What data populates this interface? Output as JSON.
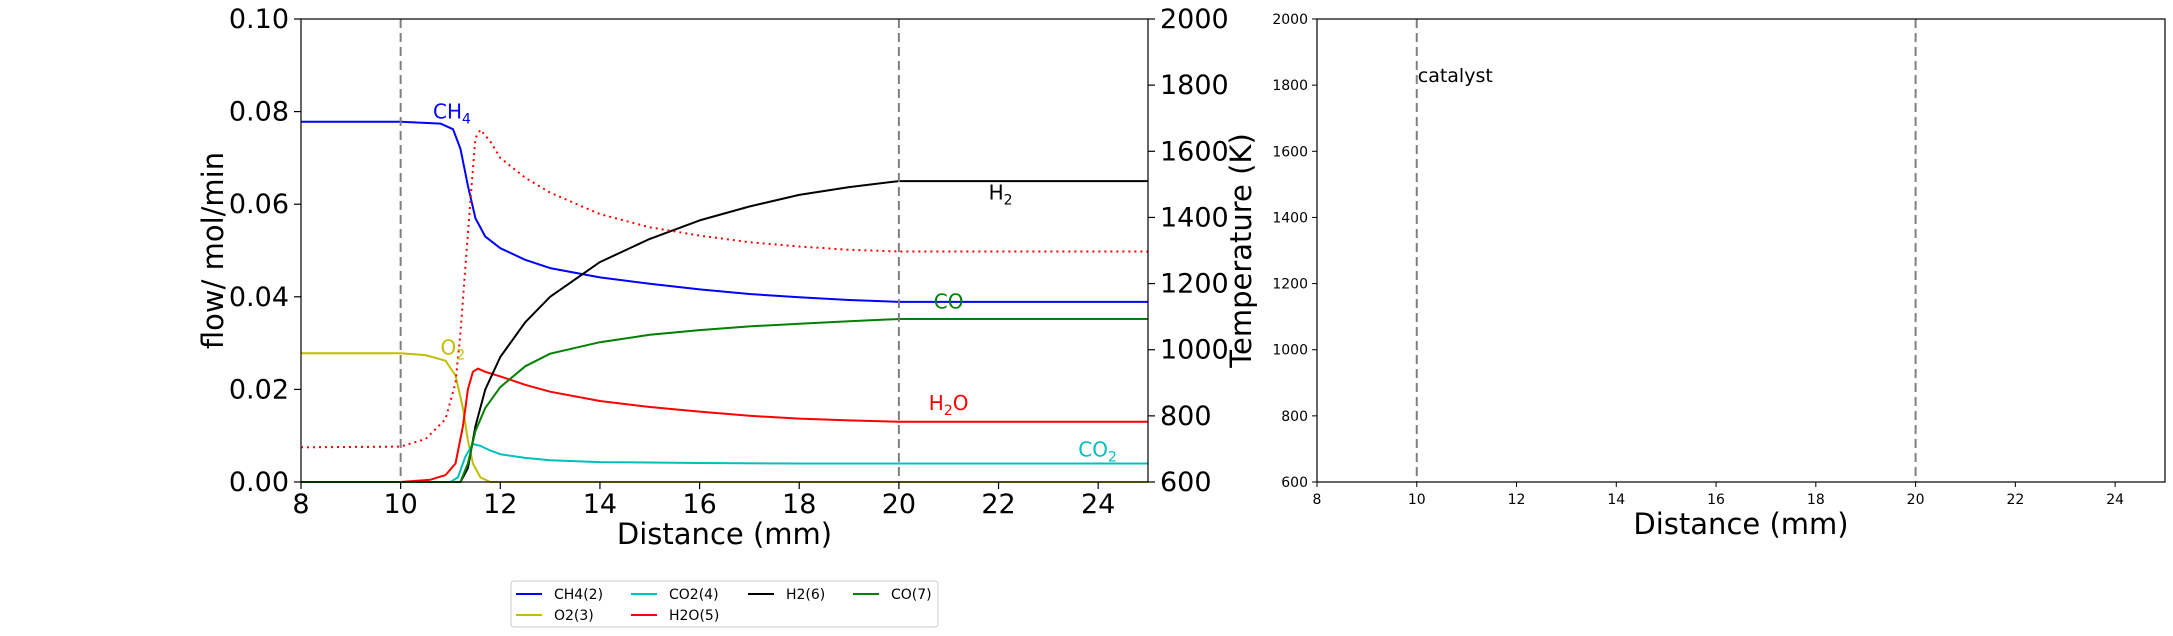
{
  "chart_data": [
    {
      "type": "line",
      "xlabel": "Distance (mm)",
      "ylabel": "flow/ mol/min",
      "y2label": "Temperature (K)",
      "xlim": [
        8,
        25
      ],
      "ylim": [
        0,
        0.1
      ],
      "y2lim": [
        600,
        2000
      ],
      "xticks": [
        "8",
        "10",
        "12",
        "14",
        "16",
        "18",
        "20",
        "22",
        "24"
      ],
      "yticks": [
        "0.00",
        "0.02",
        "0.04",
        "0.06",
        "0.08",
        "0.10"
      ],
      "y2ticks": [
        "600",
        "800",
        "1000",
        "1200",
        "1400",
        "1600",
        "1800",
        "2000"
      ],
      "vlines": [
        10,
        20
      ],
      "grid": false,
      "legend": {
        "placement": "below",
        "entries": [
          {
            "label": "CH4(2)",
            "color": "#0000ff"
          },
          {
            "label": "O2(3)",
            "color": "#bfbf00"
          },
          {
            "label": "CO2(4)",
            "color": "#00bfbf"
          },
          {
            "label": "H2O(5)",
            "color": "#ff0000"
          },
          {
            "label": "H2(6)",
            "color": "#000000"
          },
          {
            "label": "CO(7)",
            "color": "#008000"
          }
        ]
      },
      "annotations": [
        {
          "base": "CH",
          "sub": "4",
          "x": 10.65,
          "y": 0.0785,
          "color": "#0000ff"
        },
        {
          "base": "O",
          "sub": "2",
          "x": 10.8,
          "y": 0.0275,
          "color": "#bfbf00"
        },
        {
          "base": "H",
          "sub": "2",
          "x": 21.8,
          "y": 0.061,
          "color": "#000000"
        },
        {
          "base": "CO",
          "sub": "",
          "x": 20.7,
          "y": 0.0375,
          "color": "#008000"
        },
        {
          "base": "H",
          "sub": "2",
          "tail": "O",
          "x": 20.6,
          "y": 0.0155,
          "color": "#ff0000"
        },
        {
          "base": "CO",
          "sub": "2",
          "x": 23.6,
          "y": 0.0055,
          "color": "#00bfbf"
        }
      ],
      "series": [
        {
          "name": "CH4(2)",
          "color": "#0000ff",
          "axis": "y",
          "points": [
            [
              8,
              0.0778
            ],
            [
              10,
              0.0778
            ],
            [
              10.8,
              0.0774
            ],
            [
              11.05,
              0.0762
            ],
            [
              11.2,
              0.072
            ],
            [
              11.35,
              0.064
            ],
            [
              11.5,
              0.057
            ],
            [
              11.7,
              0.053
            ],
            [
              12,
              0.0505
            ],
            [
              12.5,
              0.048
            ],
            [
              13,
              0.0462
            ],
            [
              14,
              0.0442
            ],
            [
              15,
              0.0428
            ],
            [
              16,
              0.0416
            ],
            [
              17,
              0.0406
            ],
            [
              18,
              0.0399
            ],
            [
              19,
              0.0393
            ],
            [
              20,
              0.0389
            ],
            [
              25,
              0.0389
            ]
          ]
        },
        {
          "name": "O2(3)",
          "color": "#bfbf00",
          "axis": "y",
          "points": [
            [
              8,
              0.0278
            ],
            [
              10,
              0.0278
            ],
            [
              10.5,
              0.0274
            ],
            [
              10.9,
              0.0262
            ],
            [
              11.1,
              0.023
            ],
            [
              11.25,
              0.016
            ],
            [
              11.35,
              0.009
            ],
            [
              11.45,
              0.004
            ],
            [
              11.6,
              0.001
            ],
            [
              11.8,
              0
            ],
            [
              25,
              0
            ]
          ]
        },
        {
          "name": "CO2(4)",
          "color": "#00bfbf",
          "axis": "y",
          "points": [
            [
              8,
              0
            ],
            [
              11,
              0
            ],
            [
              11.15,
              0.001
            ],
            [
              11.3,
              0.0055
            ],
            [
              11.45,
              0.0082
            ],
            [
              11.6,
              0.0078
            ],
            [
              11.8,
              0.0068
            ],
            [
              12,
              0.006
            ],
            [
              12.5,
              0.0052
            ],
            [
              13,
              0.0047
            ],
            [
              14,
              0.0043
            ],
            [
              16,
              0.0041
            ],
            [
              18,
              0.004
            ],
            [
              20,
              0.004
            ],
            [
              25,
              0.004
            ]
          ]
        },
        {
          "name": "H2O(5)",
          "color": "#ff0000",
          "axis": "y",
          "points": [
            [
              8,
              0
            ],
            [
              10,
              0
            ],
            [
              10.6,
              0.0005
            ],
            [
              10.9,
              0.0015
            ],
            [
              11.1,
              0.004
            ],
            [
              11.25,
              0.012
            ],
            [
              11.35,
              0.02
            ],
            [
              11.45,
              0.0238
            ],
            [
              11.55,
              0.0245
            ],
            [
              11.7,
              0.0238
            ],
            [
              12,
              0.0228
            ],
            [
              12.5,
              0.021
            ],
            [
              13,
              0.0195
            ],
            [
              14,
              0.0175
            ],
            [
              15,
              0.0162
            ],
            [
              16,
              0.0152
            ],
            [
              17,
              0.0143
            ],
            [
              18,
              0.0137
            ],
            [
              19,
              0.0133
            ],
            [
              20,
              0.013
            ],
            [
              25,
              0.013
            ]
          ]
        },
        {
          "name": "H2(6)",
          "color": "#000000",
          "axis": "y",
          "points": [
            [
              8,
              0
            ],
            [
              11.2,
              0
            ],
            [
              11.35,
              0.003
            ],
            [
              11.5,
              0.012
            ],
            [
              11.7,
              0.02
            ],
            [
              12,
              0.027
            ],
            [
              12.5,
              0.0345
            ],
            [
              13,
              0.04
            ],
            [
              14,
              0.0475
            ],
            [
              15,
              0.0525
            ],
            [
              16,
              0.0565
            ],
            [
              17,
              0.0595
            ],
            [
              18,
              0.062
            ],
            [
              19,
              0.0637
            ],
            [
              20,
              0.065
            ],
            [
              25,
              0.065
            ]
          ]
        },
        {
          "name": "CO(7)",
          "color": "#008000",
          "axis": "y",
          "points": [
            [
              8,
              0
            ],
            [
              11.2,
              0
            ],
            [
              11.35,
              0.004
            ],
            [
              11.5,
              0.011
            ],
            [
              11.7,
              0.016
            ],
            [
              12,
              0.0205
            ],
            [
              12.5,
              0.025
            ],
            [
              13,
              0.0277
            ],
            [
              14,
              0.0302
            ],
            [
              15,
              0.0318
            ],
            [
              16,
              0.0328
            ],
            [
              17,
              0.0336
            ],
            [
              18,
              0.0342
            ],
            [
              19,
              0.0347
            ],
            [
              20,
              0.0352
            ],
            [
              25,
              0.0352
            ]
          ]
        },
        {
          "color": "#ff0000",
          "axis": "y2",
          "dash": "dotted",
          "points": [
            [
              8,
              705
            ],
            [
              10,
              707
            ],
            [
              10.5,
              730
            ],
            [
              10.9,
              790
            ],
            [
              11.1,
              900
            ],
            [
              11.2,
              1050
            ],
            [
              11.3,
              1250
            ],
            [
              11.4,
              1450
            ],
            [
              11.5,
              1640
            ],
            [
              11.6,
              1665
            ],
            [
              11.8,
              1630
            ],
            [
              12,
              1580
            ],
            [
              12.5,
              1520
            ],
            [
              13,
              1475
            ],
            [
              14,
              1410
            ],
            [
              15,
              1370
            ],
            [
              16,
              1345
            ],
            [
              17,
              1325
            ],
            [
              18,
              1312
            ],
            [
              19,
              1302
            ],
            [
              20,
              1297
            ],
            [
              25,
              1297
            ]
          ]
        }
      ]
    },
    {
      "type": "line",
      "xlabel": "Distance (mm)",
      "ylabel": "",
      "xlim": [
        8,
        25
      ],
      "ylim": [
        600,
        2000
      ],
      "xticks": [
        "8",
        "10",
        "12",
        "14",
        "16",
        "18",
        "20",
        "22",
        "24"
      ],
      "yticks": [
        "600",
        "800",
        "1000",
        "1200",
        "1400",
        "1600",
        "1800",
        "2000"
      ],
      "vlines": [
        10,
        20
      ],
      "grid": false,
      "annotations": [
        {
          "base": "catalyst",
          "sub": "",
          "x": 10.0,
          "y": 1810,
          "color": "#000000"
        }
      ],
      "series": []
    }
  ]
}
